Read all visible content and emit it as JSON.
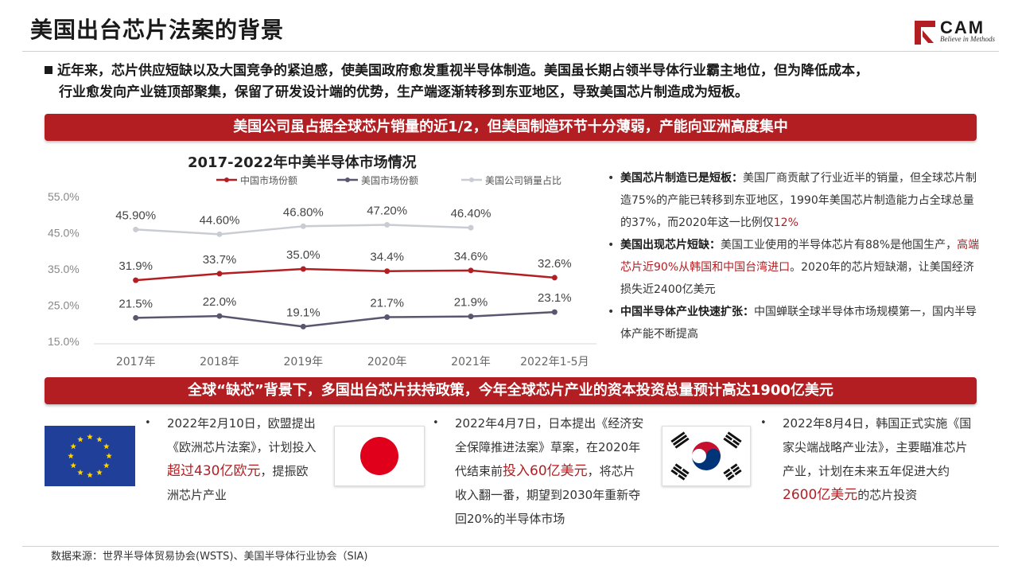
{
  "header": {
    "title": "美国出台芯片法案的背景",
    "logo_text": "CAM",
    "logo_tagline": "Believe in Methods"
  },
  "intro": {
    "line1": "近年来，芯片供应短缺以及大国竞争的紧迫感，使美国政府愈发重视半导体制造。美国虽长期占领半导体行业霸主地位，但为降低成本，",
    "line2": "行业愈发向产业链顶部聚集，保留了研发设计端的优势，生产端逐渐转移到东亚地区，导致美国芯片制造成为短板。"
  },
  "banner1": "美国公司虽占据全球芯片销量的近1/2，但美国制造环节十分薄弱，产能向亚洲高度集中",
  "banner2": "全球“缺芯”背景下，多国出台芯片扶持政策，今年全球芯片产业的资本投资总量预计高达1900亿美元",
  "chart_data": {
    "type": "line",
    "title": "2017-2022年中美半导体市场情况",
    "categories": [
      "2017年",
      "2018年",
      "2019年",
      "2020年",
      "2021年",
      "2022年1-5月"
    ],
    "y_ticks": [
      "55.0%",
      "45.0%",
      "35.0%",
      "25.0%",
      "15.0%"
    ],
    "ylim": [
      15,
      55
    ],
    "legend_position": "top",
    "series": [
      {
        "name": "中国市场份额",
        "color": "#b31e22",
        "values": [
          31.9,
          33.7,
          35.0,
          34.4,
          34.6,
          32.6
        ],
        "labels": [
          "31.9%",
          "33.7%",
          "35.0%",
          "34.4%",
          "34.6%",
          "32.6%"
        ]
      },
      {
        "name": "美国市场份额",
        "color": "#5a5670",
        "values": [
          21.5,
          22.0,
          19.1,
          21.7,
          21.9,
          23.1
        ],
        "labels": [
          "21.5%",
          "22.0%",
          "19.1%",
          "21.7%",
          "21.9%",
          "23.1%"
        ]
      },
      {
        "name": "美国公司销量占比",
        "color": "#c9ccd3",
        "values": [
          45.9,
          44.6,
          46.8,
          47.2,
          46.4,
          null
        ],
        "labels": [
          "45.90%",
          "44.60%",
          "46.80%",
          "47.20%",
          "46.40%",
          ""
        ]
      }
    ]
  },
  "points": [
    {
      "title": "美国芯片制造已是短板：",
      "text_a": "美国厂商贡献了行业近半的销量，但全球芯片制造75%的产能已转移到东亚地区，1990年美国芯片制造能力占全球总量的37%，而2020年这一比例仅",
      "highlight": "12%",
      "text_b": ""
    },
    {
      "title": "美国出现芯片短缺：",
      "text_a": "美国工业使用的半导体芯片有88%是他国生产，",
      "highlight": "高端芯片近90%从韩国和中国台湾进口",
      "text_b": "。2020年的芯片短缺潮，让美国经济损失近2400亿美元"
    },
    {
      "title": "中国半导体产业快速扩张：",
      "text_a": "中国蝉联全球半导体市场规模第一，国内半导体产能不断提高",
      "highlight": "",
      "text_b": ""
    }
  ],
  "policies": [
    {
      "text_a": "2022年2月10日，欧盟提出《欧洲芯片法案》，计划投入",
      "highlight": "超过430亿欧元",
      "text_b": "，提振欧洲芯片产业"
    },
    {
      "text_a": "2022年4月7日，日本提出《经济安全保障推进法案》草案，在2020年代结束前",
      "highlight": "投入60亿美元",
      "text_b": "，将芯片收入翻一番，期望到2030年重新夺回20%的半导体市场"
    },
    {
      "text_a": "2022年8月4日，韩国正式实施《国家尖端战略产业法》，主要瞄准芯片产业，计划在未来五年促进大约",
      "highlight": "2600亿美元",
      "text_b": "的芯片投资"
    }
  ],
  "bullet_char": "•",
  "source": "数据来源：世界半导体贸易协会(WSTS)、美国半导体行业协会（SIA)",
  "colors": {
    "accent": "#b31e22",
    "eu_blue": "#1f3f99",
    "eu_star": "#ffd400"
  }
}
